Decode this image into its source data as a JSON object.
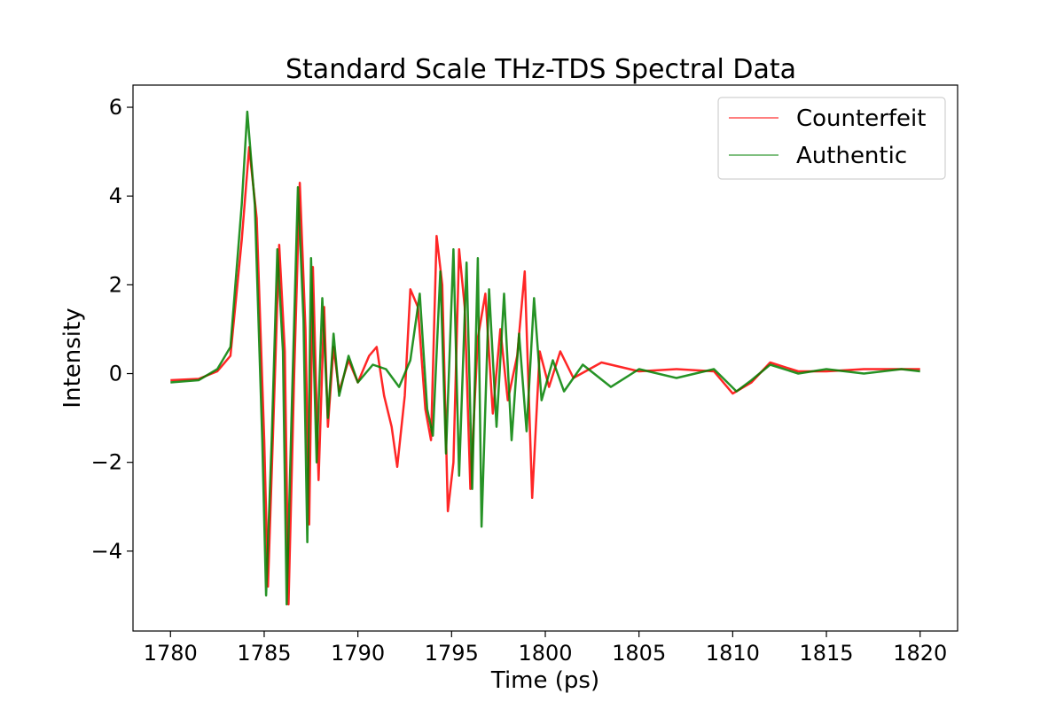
{
  "chart_data": {
    "type": "line",
    "title": "Standard Scale THz-TDS Spectral Data",
    "xlabel": "Time (ps)",
    "ylabel": "Intensity",
    "xlim": [
      1778,
      1822
    ],
    "ylim": [
      -5.8,
      6.5
    ],
    "xticks": [
      1780,
      1785,
      1790,
      1795,
      1800,
      1805,
      1810,
      1815,
      1820
    ],
    "xtick_labels": [
      "1780",
      "1785",
      "1790",
      "1795",
      "1800",
      "1805",
      "1810",
      "1815",
      "1820"
    ],
    "yticks": [
      -4,
      -2,
      0,
      2,
      4,
      6
    ],
    "ytick_labels": [
      "−4",
      "−2",
      "0",
      "2",
      "4",
      "6"
    ],
    "grid": false,
    "legend_position": "top-right",
    "series": [
      {
        "name": "Counterfeit",
        "color": "#ff0000",
        "opacity": 0.5,
        "points": [
          [
            1780.0,
            -0.15
          ],
          [
            1781.5,
            -0.12
          ],
          [
            1782.5,
            0.05
          ],
          [
            1783.2,
            0.4
          ],
          [
            1783.8,
            3.0
          ],
          [
            1784.2,
            5.1
          ],
          [
            1784.6,
            3.5
          ],
          [
            1785.0,
            -1.5
          ],
          [
            1785.2,
            -4.8
          ],
          [
            1785.5,
            -1.0
          ],
          [
            1785.8,
            2.9
          ],
          [
            1786.1,
            0.5
          ],
          [
            1786.3,
            -5.2
          ],
          [
            1786.6,
            0.0
          ],
          [
            1786.9,
            4.3
          ],
          [
            1787.2,
            1.0
          ],
          [
            1787.4,
            -3.4
          ],
          [
            1787.6,
            2.4
          ],
          [
            1787.9,
            -2.4
          ],
          [
            1788.2,
            1.5
          ],
          [
            1788.4,
            -1.2
          ],
          [
            1788.7,
            0.6
          ],
          [
            1789.0,
            -0.4
          ],
          [
            1789.5,
            0.3
          ],
          [
            1790.0,
            -0.2
          ],
          [
            1790.6,
            0.4
          ],
          [
            1791.0,
            0.6
          ],
          [
            1791.4,
            -0.5
          ],
          [
            1791.8,
            -1.2
          ],
          [
            1792.1,
            -2.1
          ],
          [
            1792.5,
            -0.5
          ],
          [
            1792.8,
            1.9
          ],
          [
            1793.2,
            1.5
          ],
          [
            1793.6,
            -0.8
          ],
          [
            1793.9,
            -1.5
          ],
          [
            1794.2,
            3.1
          ],
          [
            1794.5,
            2.0
          ],
          [
            1794.8,
            -3.1
          ],
          [
            1795.1,
            -2.0
          ],
          [
            1795.4,
            2.8
          ],
          [
            1795.7,
            1.5
          ],
          [
            1796.0,
            -2.6
          ],
          [
            1796.4,
            0.8
          ],
          [
            1796.8,
            1.8
          ],
          [
            1797.2,
            -0.9
          ],
          [
            1797.6,
            1.0
          ],
          [
            1798.0,
            -0.6
          ],
          [
            1798.5,
            0.4
          ],
          [
            1798.9,
            2.3
          ],
          [
            1799.3,
            -2.8
          ],
          [
            1799.7,
            0.5
          ],
          [
            1800.2,
            -0.3
          ],
          [
            1800.8,
            0.5
          ],
          [
            1801.5,
            -0.1
          ],
          [
            1803.0,
            0.25
          ],
          [
            1805.0,
            0.05
          ],
          [
            1807.0,
            0.1
          ],
          [
            1809.0,
            0.05
          ],
          [
            1810.0,
            -0.45
          ],
          [
            1811.0,
            -0.2
          ],
          [
            1812.0,
            0.25
          ],
          [
            1813.5,
            0.05
          ],
          [
            1815.0,
            0.05
          ],
          [
            1817.0,
            0.1
          ],
          [
            1820.0,
            0.1
          ]
        ]
      },
      {
        "name": "Authentic",
        "color": "#008000",
        "opacity": 0.5,
        "points": [
          [
            1780.0,
            -0.2
          ],
          [
            1781.5,
            -0.15
          ],
          [
            1782.5,
            0.1
          ],
          [
            1783.2,
            0.6
          ],
          [
            1783.8,
            3.8
          ],
          [
            1784.1,
            5.9
          ],
          [
            1784.5,
            3.8
          ],
          [
            1784.9,
            -1.5
          ],
          [
            1785.1,
            -5.0
          ],
          [
            1785.4,
            -1.5
          ],
          [
            1785.7,
            2.8
          ],
          [
            1786.0,
            0.5
          ],
          [
            1786.2,
            -5.2
          ],
          [
            1786.5,
            -0.3
          ],
          [
            1786.8,
            4.2
          ],
          [
            1787.1,
            1.2
          ],
          [
            1787.3,
            -3.8
          ],
          [
            1787.5,
            2.6
          ],
          [
            1787.8,
            -2.0
          ],
          [
            1788.1,
            1.7
          ],
          [
            1788.4,
            -1.0
          ],
          [
            1788.7,
            0.9
          ],
          [
            1789.0,
            -0.5
          ],
          [
            1789.5,
            0.4
          ],
          [
            1790.0,
            -0.2
          ],
          [
            1790.8,
            0.2
          ],
          [
            1791.5,
            0.1
          ],
          [
            1792.2,
            -0.3
          ],
          [
            1792.8,
            0.3
          ],
          [
            1793.3,
            1.8
          ],
          [
            1793.7,
            -0.8
          ],
          [
            1794.0,
            -1.4
          ],
          [
            1794.4,
            2.3
          ],
          [
            1794.7,
            -1.8
          ],
          [
            1795.1,
            2.8
          ],
          [
            1795.4,
            -2.3
          ],
          [
            1795.8,
            2.5
          ],
          [
            1796.1,
            -2.6
          ],
          [
            1796.4,
            2.6
          ],
          [
            1796.6,
            -3.45
          ],
          [
            1797.0,
            1.9
          ],
          [
            1797.4,
            -1.2
          ],
          [
            1797.8,
            1.8
          ],
          [
            1798.2,
            -1.5
          ],
          [
            1798.6,
            0.9
          ],
          [
            1799.0,
            -1.3
          ],
          [
            1799.4,
            1.7
          ],
          [
            1799.8,
            -0.6
          ],
          [
            1800.4,
            0.3
          ],
          [
            1801.0,
            -0.4
          ],
          [
            1802.0,
            0.2
          ],
          [
            1803.5,
            -0.3
          ],
          [
            1805.0,
            0.1
          ],
          [
            1807.0,
            -0.1
          ],
          [
            1809.0,
            0.1
          ],
          [
            1810.2,
            -0.4
          ],
          [
            1811.0,
            -0.15
          ],
          [
            1812.0,
            0.2
          ],
          [
            1813.5,
            0.0
          ],
          [
            1815.0,
            0.1
          ],
          [
            1817.0,
            0.0
          ],
          [
            1819.0,
            0.1
          ],
          [
            1820.0,
            0.05
          ]
        ]
      }
    ]
  }
}
